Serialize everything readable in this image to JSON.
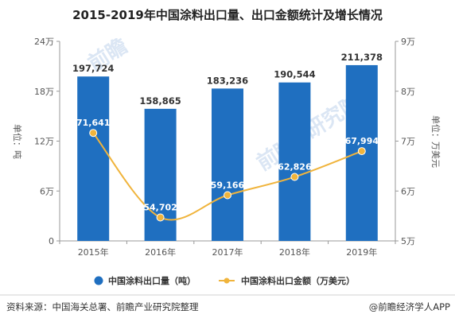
{
  "chart_data": {
    "type": "bar",
    "title": "2015-2019年中国涂料出口量、出口金额统计及增长情况",
    "categories": [
      "2015年",
      "2016年",
      "2017年",
      "2018年",
      "2019年"
    ],
    "series": [
      {
        "name": "中国涂料出口量（吨）",
        "type": "bar",
        "axis": "left",
        "values": [
          197724,
          158865,
          183236,
          190544,
          211378
        ],
        "labels": [
          "197,724",
          "158,865",
          "183,236",
          "190,544",
          "211,378"
        ],
        "color": "#1f6fc0"
      },
      {
        "name": "中国涂料出口金额（万美元）",
        "type": "line",
        "axis": "right",
        "values": [
          71641,
          54702,
          59166,
          62826,
          67994
        ],
        "labels": [
          "71,641",
          "54,702",
          "59,166",
          "62,826",
          "67,994"
        ],
        "color": "#f0b43c"
      }
    ],
    "y_left": {
      "label": "单位：吨",
      "ticks": [
        "0",
        "6万",
        "12万",
        "18万",
        "24万"
      ],
      "ylim": [
        0,
        240000
      ]
    },
    "y_right": {
      "label": "单位：万美元",
      "ticks": [
        "5万",
        "6万",
        "7万",
        "8万",
        "9万"
      ],
      "ylim": [
        50000,
        90000
      ]
    },
    "legend_position": "bottom",
    "grid": false
  },
  "footer": {
    "source": "资料来源：中国海关总署、前瞻产业研究院整理",
    "brand": "@前瞻经济学人APP"
  },
  "watermark": {
    "text1": "前瞻",
    "text2": "研究院"
  }
}
